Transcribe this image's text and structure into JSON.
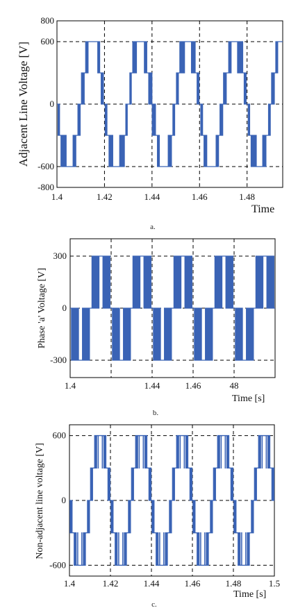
{
  "chart_data": [
    {
      "type": "line",
      "caption": "a.",
      "ylabel": "Adjacent Line Voltage [V]",
      "xlabel": "Time",
      "x_ticks": [
        "1.4",
        "1.42",
        "1.44",
        "1.46",
        "1.48"
      ],
      "y_ticks": [
        "800",
        "600",
        "0",
        "-600",
        "-800"
      ],
      "xlim": [
        1.4,
        1.495
      ],
      "ylim": [
        -800,
        800
      ],
      "levels": [
        600,
        300,
        0,
        -300,
        -600
      ],
      "period": 0.02,
      "grid": true,
      "color": "#3a63b5",
      "series": [
        {
          "x": [
            1.4,
            1.4025,
            1.405,
            1.4075,
            1.41,
            1.4125,
            1.415,
            1.4175,
            1.42
          ],
          "y": [
            0,
            -300,
            -600,
            -300,
            300,
            600,
            300,
            0,
            0
          ]
        }
      ]
    },
    {
      "type": "line",
      "caption": "b.",
      "ylabel": "Phase 'a' Voltage [V]",
      "xlabel": "Time [s]",
      "x_ticks": [
        "1.4",
        "1.44",
        "1.46",
        "48"
      ],
      "y_ticks": [
        "300",
        "0",
        "-300"
      ],
      "xlim": [
        1.4,
        1.5
      ],
      "ylim": [
        -400,
        400
      ],
      "levels": [
        300,
        0,
        -300
      ],
      "period": 0.02,
      "grid": true,
      "color": "#3a63b5",
      "series": [
        {
          "x": [
            1.4,
            1.401,
            1.409,
            1.41,
            1.418,
            1.42
          ],
          "y": [
            0,
            -300,
            -300,
            300,
            300,
            0
          ]
        }
      ]
    },
    {
      "type": "line",
      "caption": "c.",
      "ylabel": "Non-adjacent line voltage [V]",
      "xlabel": "Time [s]",
      "x_ticks": [
        "1.4",
        "1.42",
        "1.44",
        "1.46",
        "1.48",
        "1.5"
      ],
      "y_ticks": [
        "600",
        "0",
        "-600"
      ],
      "xlim": [
        1.4,
        1.5
      ],
      "ylim": [
        -700,
        700
      ],
      "levels": [
        600,
        300,
        0,
        -300,
        -600
      ],
      "period": 0.02,
      "grid": true,
      "color": "#3a63b5",
      "series": [
        {
          "x": [
            1.4,
            1.4025,
            1.405,
            1.4075,
            1.41,
            1.4125,
            1.415,
            1.4175,
            1.42
          ],
          "y": [
            0,
            -300,
            -600,
            -300,
            300,
            600,
            300,
            0,
            0
          ]
        }
      ]
    }
  ]
}
